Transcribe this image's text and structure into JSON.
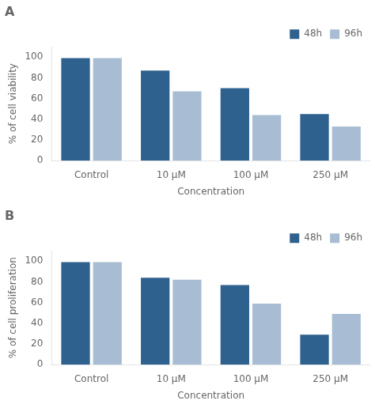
{
  "chart_data": [
    {
      "type": "bar",
      "title": "A",
      "categories": [
        "Control",
        "10 μM",
        "100 μM",
        "250 μM"
      ],
      "series": [
        {
          "name": "48h",
          "color": "#2E618E",
          "values": [
            99,
            87,
            70,
            45
          ]
        },
        {
          "name": "96h",
          "color": "#A8BDD4",
          "values": [
            99,
            67,
            44,
            33
          ]
        }
      ],
      "x_label": "Concentration",
      "y_label": "% of cell viability",
      "ylim": [
        0,
        110
      ],
      "yticks": [
        0,
        20,
        40,
        60,
        80,
        100
      ],
      "grid": false,
      "legend": "upper right"
    },
    {
      "type": "bar",
      "title": "B",
      "categories": [
        "Control",
        "10 μM",
        "100 μM",
        "250 μM"
      ],
      "series": [
        {
          "name": "48h",
          "color": "#2E618E",
          "values": [
            99,
            84,
            77,
            29
          ]
        },
        {
          "name": "96h",
          "color": "#A8BDD4",
          "values": [
            99,
            82,
            59,
            49
          ]
        }
      ],
      "x_label": "Concentration",
      "y_label": "% of cell proliferation",
      "ylim": [
        0,
        110
      ],
      "yticks": [
        0,
        20,
        40,
        60,
        80,
        100
      ],
      "grid": false,
      "legend": "upper right"
    }
  ]
}
